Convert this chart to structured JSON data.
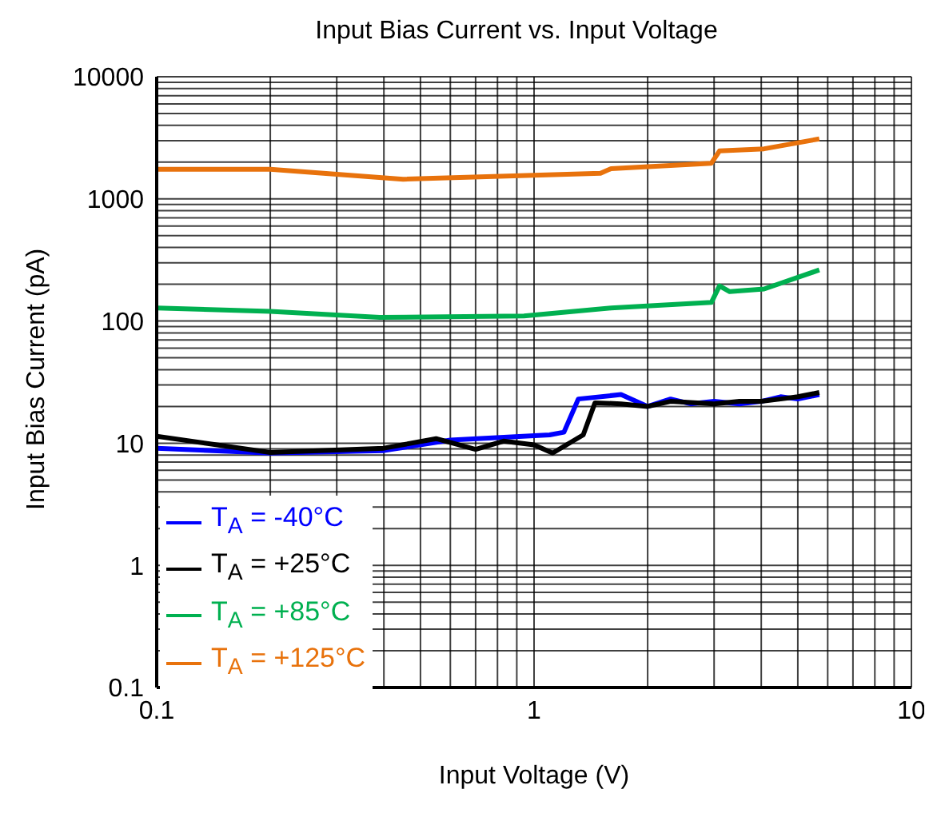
{
  "chart_data": {
    "type": "line",
    "title": "Input Bias Current vs. Input Voltage",
    "xlabel": "Input Voltage (V)",
    "ylabel": "Input Bias Current (pA)",
    "log": "xy",
    "grid": true,
    "legend": "bottom left",
    "line_style": "solid",
    "marker": "none",
    "xlim": [
      0.1,
      10
    ],
    "ylim": [
      0.1,
      10000
    ],
    "xticks": [
      0.1,
      {
        "value": 0.2,
        "label": null
      },
      {
        "value": 0.3,
        "label": null
      },
      {
        "value": 0.4,
        "label": null
      },
      {
        "value": 0.5,
        "label": null
      },
      {
        "value": 0.6,
        "label": null
      },
      {
        "value": 0.7,
        "label": null
      },
      {
        "value": 0.8,
        "label": null
      },
      {
        "value": 0.9,
        "label": null
      },
      1,
      {
        "value": 2,
        "label": null
      },
      {
        "value": 3,
        "label": null
      },
      {
        "value": 4,
        "label": null
      },
      {
        "value": 5,
        "label": null
      },
      {
        "value": 6,
        "label": null
      },
      {
        "value": 7,
        "label": null
      },
      {
        "value": 8,
        "label": null
      },
      {
        "value": 9,
        "label": null
      },
      10
    ],
    "yticks": [
      0.1,
      {
        "value": 0.2,
        "label": null
      },
      {
        "value": 0.3,
        "label": null
      },
      {
        "value": 0.4,
        "label": null
      },
      {
        "value": 0.5,
        "label": null
      },
      {
        "value": 0.6,
        "label": null
      },
      {
        "value": 0.7,
        "label": null
      },
      {
        "value": 0.8,
        "label": null
      },
      {
        "value": 0.9,
        "label": null
      },
      1,
      {
        "value": 2,
        "label": null
      },
      {
        "value": 3,
        "label": null
      },
      {
        "value": 4,
        "label": null
      },
      {
        "value": 5,
        "label": null
      },
      {
        "value": 6,
        "label": null
      },
      {
        "value": 7,
        "label": null
      },
      {
        "value": 8,
        "label": null
      },
      {
        "value": 9,
        "label": null
      },
      10,
      {
        "value": 20,
        "label": null
      },
      {
        "value": 30,
        "label": null
      },
      {
        "value": 40,
        "label": null
      },
      {
        "value": 50,
        "label": null
      },
      {
        "value": 60,
        "label": null
      },
      {
        "value": 70,
        "label": null
      },
      {
        "value": 80,
        "label": null
      },
      {
        "value": 90,
        "label": null
      },
      100,
      {
        "value": 200,
        "label": null
      },
      {
        "value": 300,
        "label": null
      },
      {
        "value": 400,
        "label": null
      },
      {
        "value": 500,
        "label": null
      },
      {
        "value": 600,
        "label": null
      },
      {
        "value": 700,
        "label": null
      },
      {
        "value": 800,
        "label": null
      },
      {
        "value": 900,
        "label": null
      },
      1000,
      {
        "value": 2000,
        "label": null
      },
      {
        "value": 3000,
        "label": null
      },
      {
        "value": 4000,
        "label": null
      },
      {
        "value": 5000,
        "label": null
      },
      {
        "value": 6000,
        "label": null
      },
      {
        "value": 7000,
        "label": null
      },
      {
        "value": 8000,
        "label": null
      },
      {
        "value": 9000,
        "label": null
      },
      10000
    ],
    "series": [
      {
        "name": "T$_{A}$ = -40°C",
        "color": "#0000ff",
        "x": [
          0.1,
          0.2,
          0.4,
          0.6,
          1.1,
          1.2,
          1.31,
          1.7,
          2.0,
          2.3,
          2.6,
          3.0,
          3.5,
          4.0,
          4.5,
          5.0,
          5.7
        ],
        "values": [
          9.1,
          8.3,
          8.7,
          10.6,
          11.7,
          12.3,
          23,
          25,
          20,
          23,
          21,
          22,
          21,
          22,
          24,
          23,
          25
        ]
      },
      {
        "name": "T$_{A}$ = +25°C",
        "color": "#000000",
        "x": [
          0.1,
          0.2,
          0.4,
          0.55,
          0.7,
          0.83,
          1.0,
          1.12,
          1.35,
          1.45,
          1.7,
          2.0,
          2.3,
          3.0,
          3.5,
          4.0,
          4.5,
          5.0,
          5.7
        ],
        "values": [
          11.4,
          8.4,
          9.1,
          10.9,
          8.9,
          10.4,
          9.7,
          8.3,
          11.7,
          21.4,
          21,
          20,
          22,
          21,
          22,
          22,
          23,
          24,
          26
        ]
      },
      {
        "name": "T$_{A}$ = +85°C",
        "color": "#00b050",
        "x": [
          0.1,
          0.2,
          0.39,
          0.94,
          1.6,
          2.95,
          3.1,
          3.3,
          4.07,
          5.7
        ],
        "values": [
          128,
          120,
          107,
          110,
          128,
          142,
          194,
          174,
          183,
          262
        ]
      },
      {
        "name": "T$_{A}$ = +125°C",
        "color": "#e8720c",
        "x": [
          0.1,
          0.2,
          0.45,
          1.5,
          1.6,
          2.95,
          3.1,
          4.07,
          5.7
        ],
        "values": [
          1750,
          1750,
          1450,
          1620,
          1770,
          1960,
          2470,
          2570,
          3100
        ]
      }
    ]
  }
}
